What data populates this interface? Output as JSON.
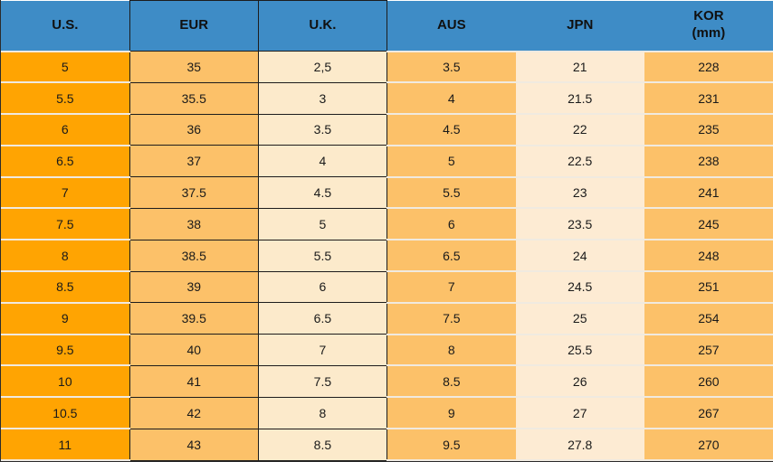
{
  "chart_data": {
    "type": "table",
    "columns": [
      {
        "label": "U.S.",
        "sublabel": ""
      },
      {
        "label": "EUR",
        "sublabel": ""
      },
      {
        "label": "U.K.",
        "sublabel": ""
      },
      {
        "label": "AUS",
        "sublabel": ""
      },
      {
        "label": "JPN",
        "sublabel": ""
      },
      {
        "label": "KOR",
        "sublabel": "(mm)"
      }
    ],
    "rows": [
      [
        "5",
        "35",
        "2,5",
        "3.5",
        "21",
        "228"
      ],
      [
        "5.5",
        "35.5",
        "3",
        "4",
        "21.5",
        "231"
      ],
      [
        "6",
        "36",
        "3.5",
        "4.5",
        "22",
        "235"
      ],
      [
        "6.5",
        "37",
        "4",
        "5",
        "22.5",
        "238"
      ],
      [
        "7",
        "37.5",
        "4.5",
        "5.5",
        "23",
        "241"
      ],
      [
        "7.5",
        "38",
        "5",
        "6",
        "23.5",
        "245"
      ],
      [
        "8",
        "38.5",
        "5.5",
        "6.5",
        "24",
        "248"
      ],
      [
        "8.5",
        "39",
        "6",
        "7",
        "24.5",
        "251"
      ],
      [
        "9",
        "39.5",
        "6.5",
        "7.5",
        "25",
        "254"
      ],
      [
        "9.5",
        "40",
        "7",
        "8",
        "25.5",
        "257"
      ],
      [
        "10",
        "41",
        "7.5",
        "8.5",
        "26",
        "260"
      ],
      [
        "10.5",
        "42",
        "8",
        "9",
        "27",
        "267"
      ],
      [
        "11",
        "43",
        "8.5",
        "9.5",
        "27.8",
        "270"
      ]
    ]
  },
  "colors": {
    "header_bg": "#3E8CC6",
    "us_column_bg": "#FFA402",
    "eur_column_bg": "#FCC169",
    "uk_column_bg": "#FCEACB",
    "aus_column_bg": "#FCC169",
    "jpn_column_bg": "#FDEBD3",
    "kor_column_bg": "#FCC169",
    "cell_border_dark": "#1C1C1C",
    "row_separator": "#F0EAE0",
    "text": "#1A1A1A"
  }
}
